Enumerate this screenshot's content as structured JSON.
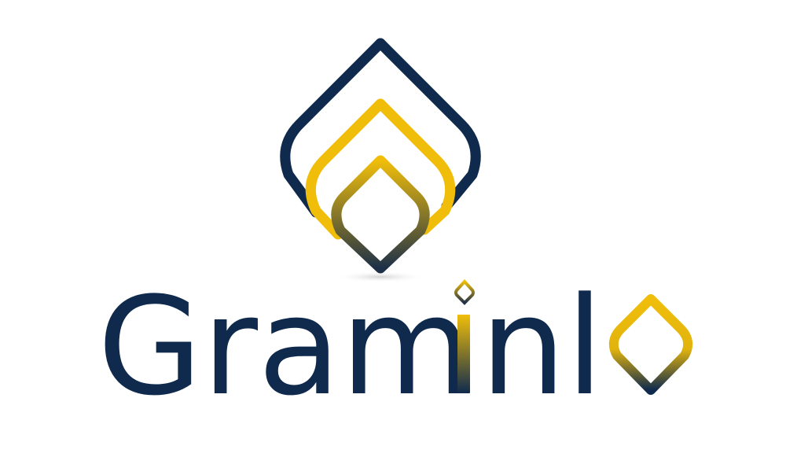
{
  "logo": {
    "brand_name": "Graminlo",
    "wordmark_parts": {
      "before_i": "Gram",
      "i_letter": "i",
      "after_i": "nl",
      "final_o_shape": "o"
    },
    "icon_names": {
      "emblem": "layered-drop-emblem-icon",
      "i_dot": "diamond-dot-icon",
      "o_drop": "drop-o-icon"
    },
    "colors": {
      "navy": "#0f2a4d",
      "gold": "#f0be0a",
      "background": "#ffffff"
    }
  }
}
